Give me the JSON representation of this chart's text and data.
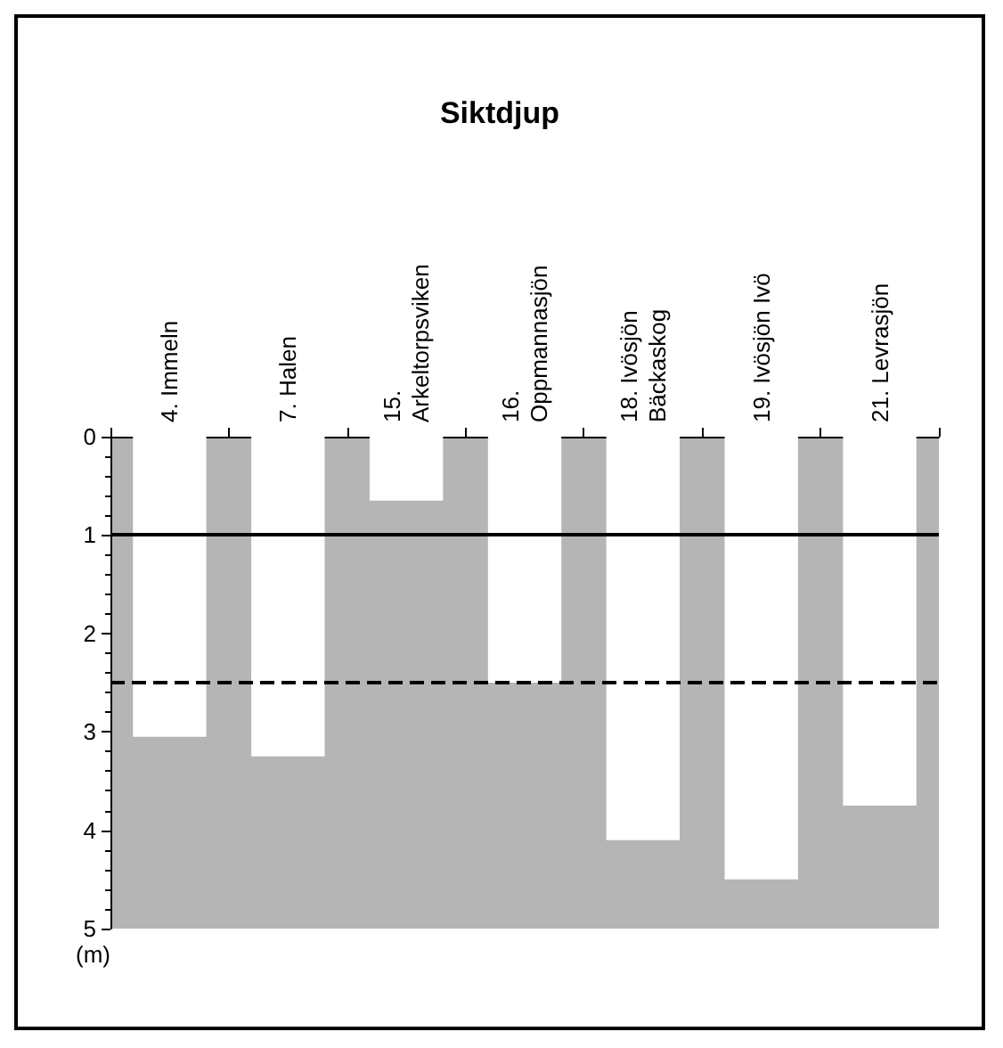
{
  "chart_data": {
    "type": "bar",
    "title": "Siktdjup",
    "ylabel": "(m)",
    "categories": [
      "4. Immeln",
      "7. Halen",
      "15.\nArkeltorpsviken",
      "16.\nOppmannasjön",
      "18. Ivösjön\nBäckaskog",
      "19. Ivösjön Ivö",
      "21. Levrasjön"
    ],
    "values": [
      3.05,
      3.25,
      0.65,
      2.5,
      4.1,
      4.5,
      3.75
    ],
    "color": "#ffffff",
    "ylim": [
      5,
      0
    ],
    "yticks": [
      0,
      1,
      2,
      3,
      4,
      5
    ],
    "ref_lines": [
      {
        "axis": "y",
        "value": 1,
        "line_style": "solid",
        "color": "#000000"
      },
      {
        "axis": "y",
        "value": 2.5,
        "line_style": "dashed",
        "color": "#000000"
      }
    ]
  }
}
